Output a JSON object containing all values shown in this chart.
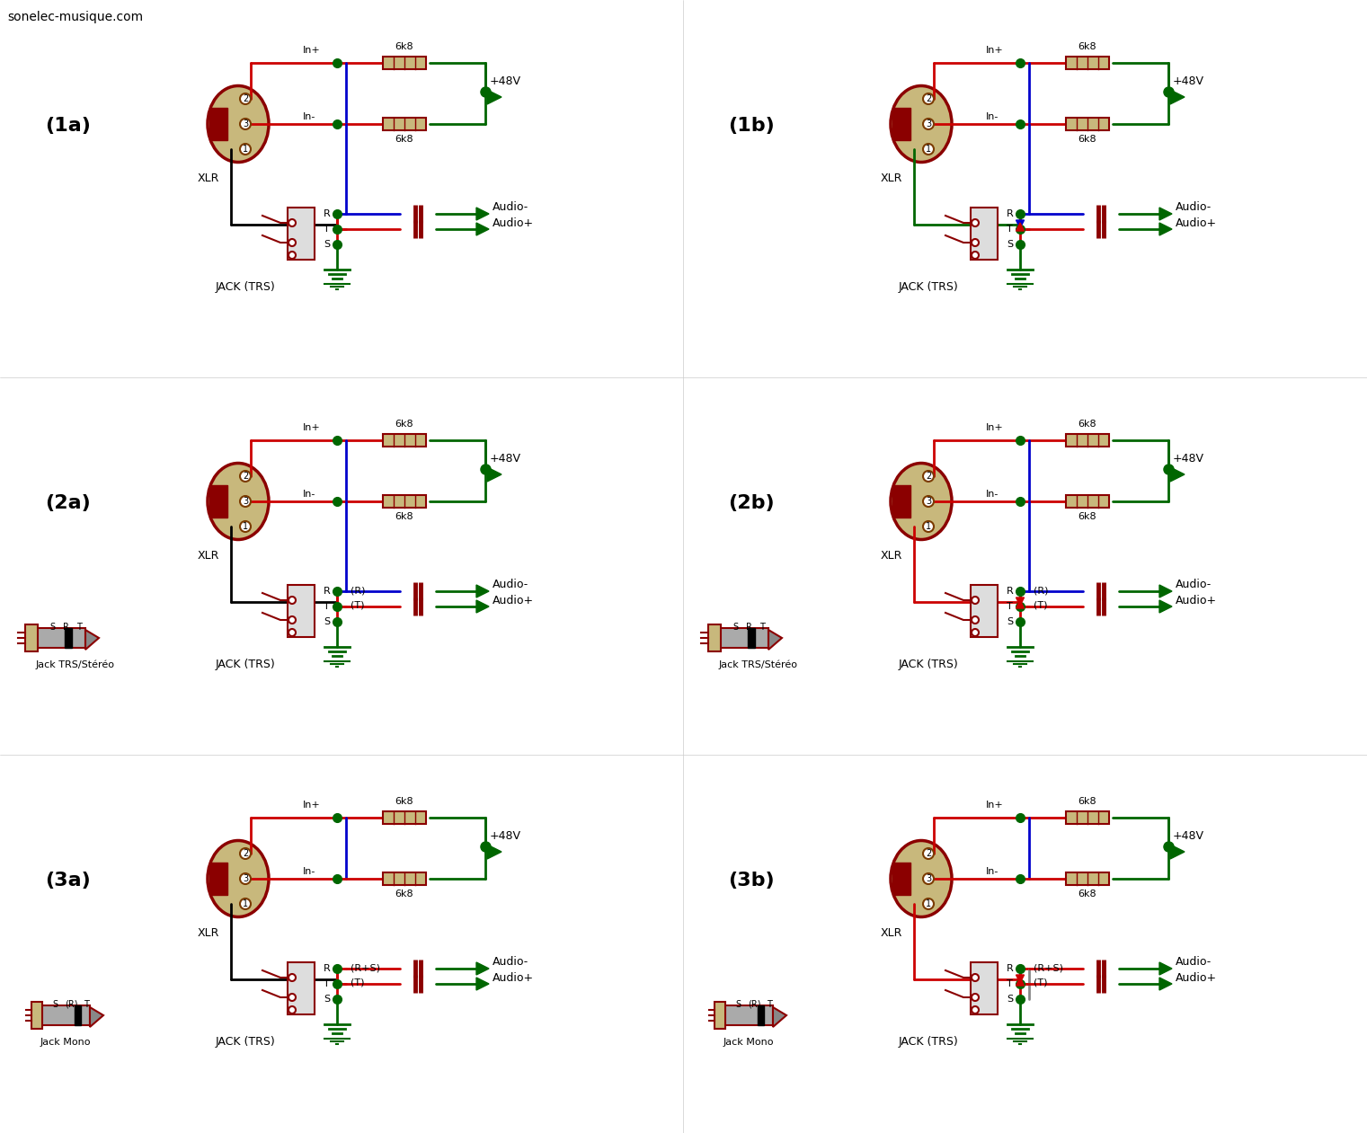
{
  "watermark": "sonelec-musique.com",
  "bg": "#ffffff",
  "RED": "#cc0000",
  "DRED": "#8b0000",
  "GREEN": "#006600",
  "BLUE": "#0000cc",
  "BLACK": "#000000",
  "KHAKI": "#c8b87c",
  "BROWN": "#7b3b00",
  "LW": 2.0,
  "panels": [
    "(1a)",
    "(1b)",
    "(2a)",
    "(2b)",
    "(3a)",
    "(3b)"
  ]
}
